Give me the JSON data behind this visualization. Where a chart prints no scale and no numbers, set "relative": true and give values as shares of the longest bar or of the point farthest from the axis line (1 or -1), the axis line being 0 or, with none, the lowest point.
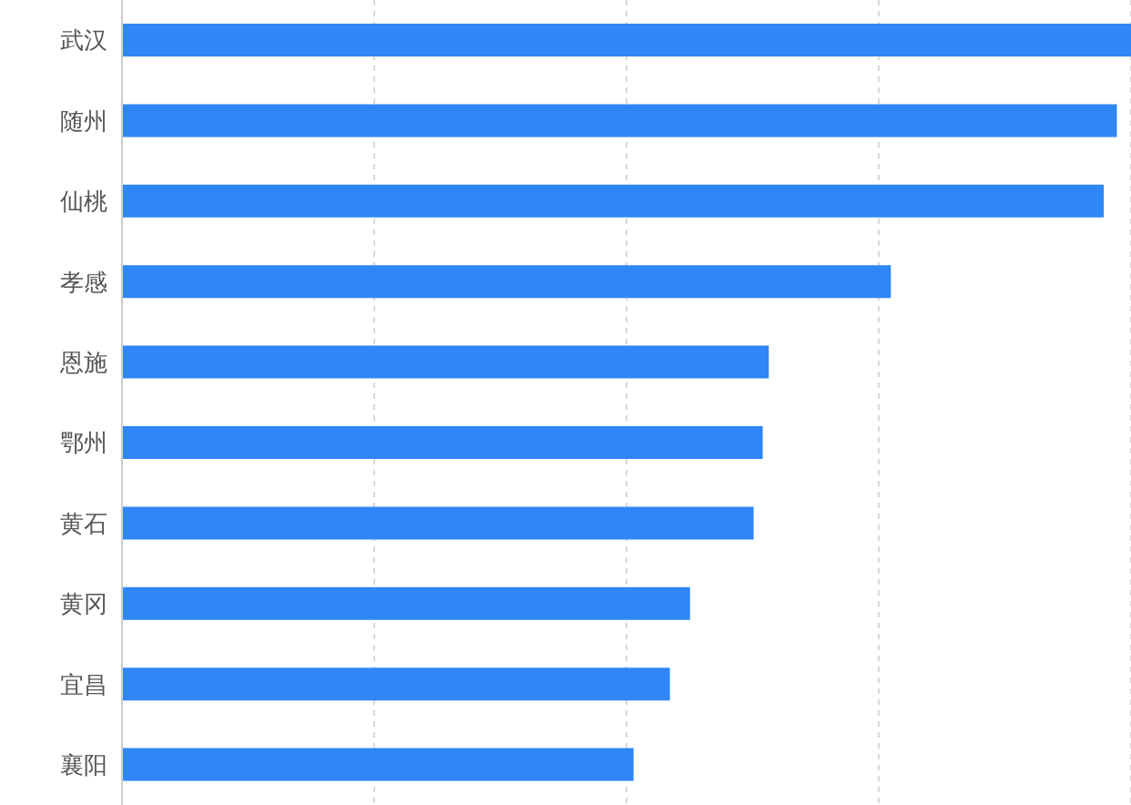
{
  "chart_data": {
    "type": "bar",
    "orientation": "horizontal",
    "relative": true,
    "categories": [
      "武汉",
      "随州",
      "仙桃",
      "孝感",
      "恩施",
      "鄂州",
      "黄石",
      "黄冈",
      "宜昌",
      "襄阳"
    ],
    "values": [
      1,
      0.986,
      0.973,
      0.762,
      0.641,
      0.635,
      0.626,
      0.563,
      0.543,
      0.507
    ],
    "color": "#2f86f6",
    "grid": "x"
  }
}
